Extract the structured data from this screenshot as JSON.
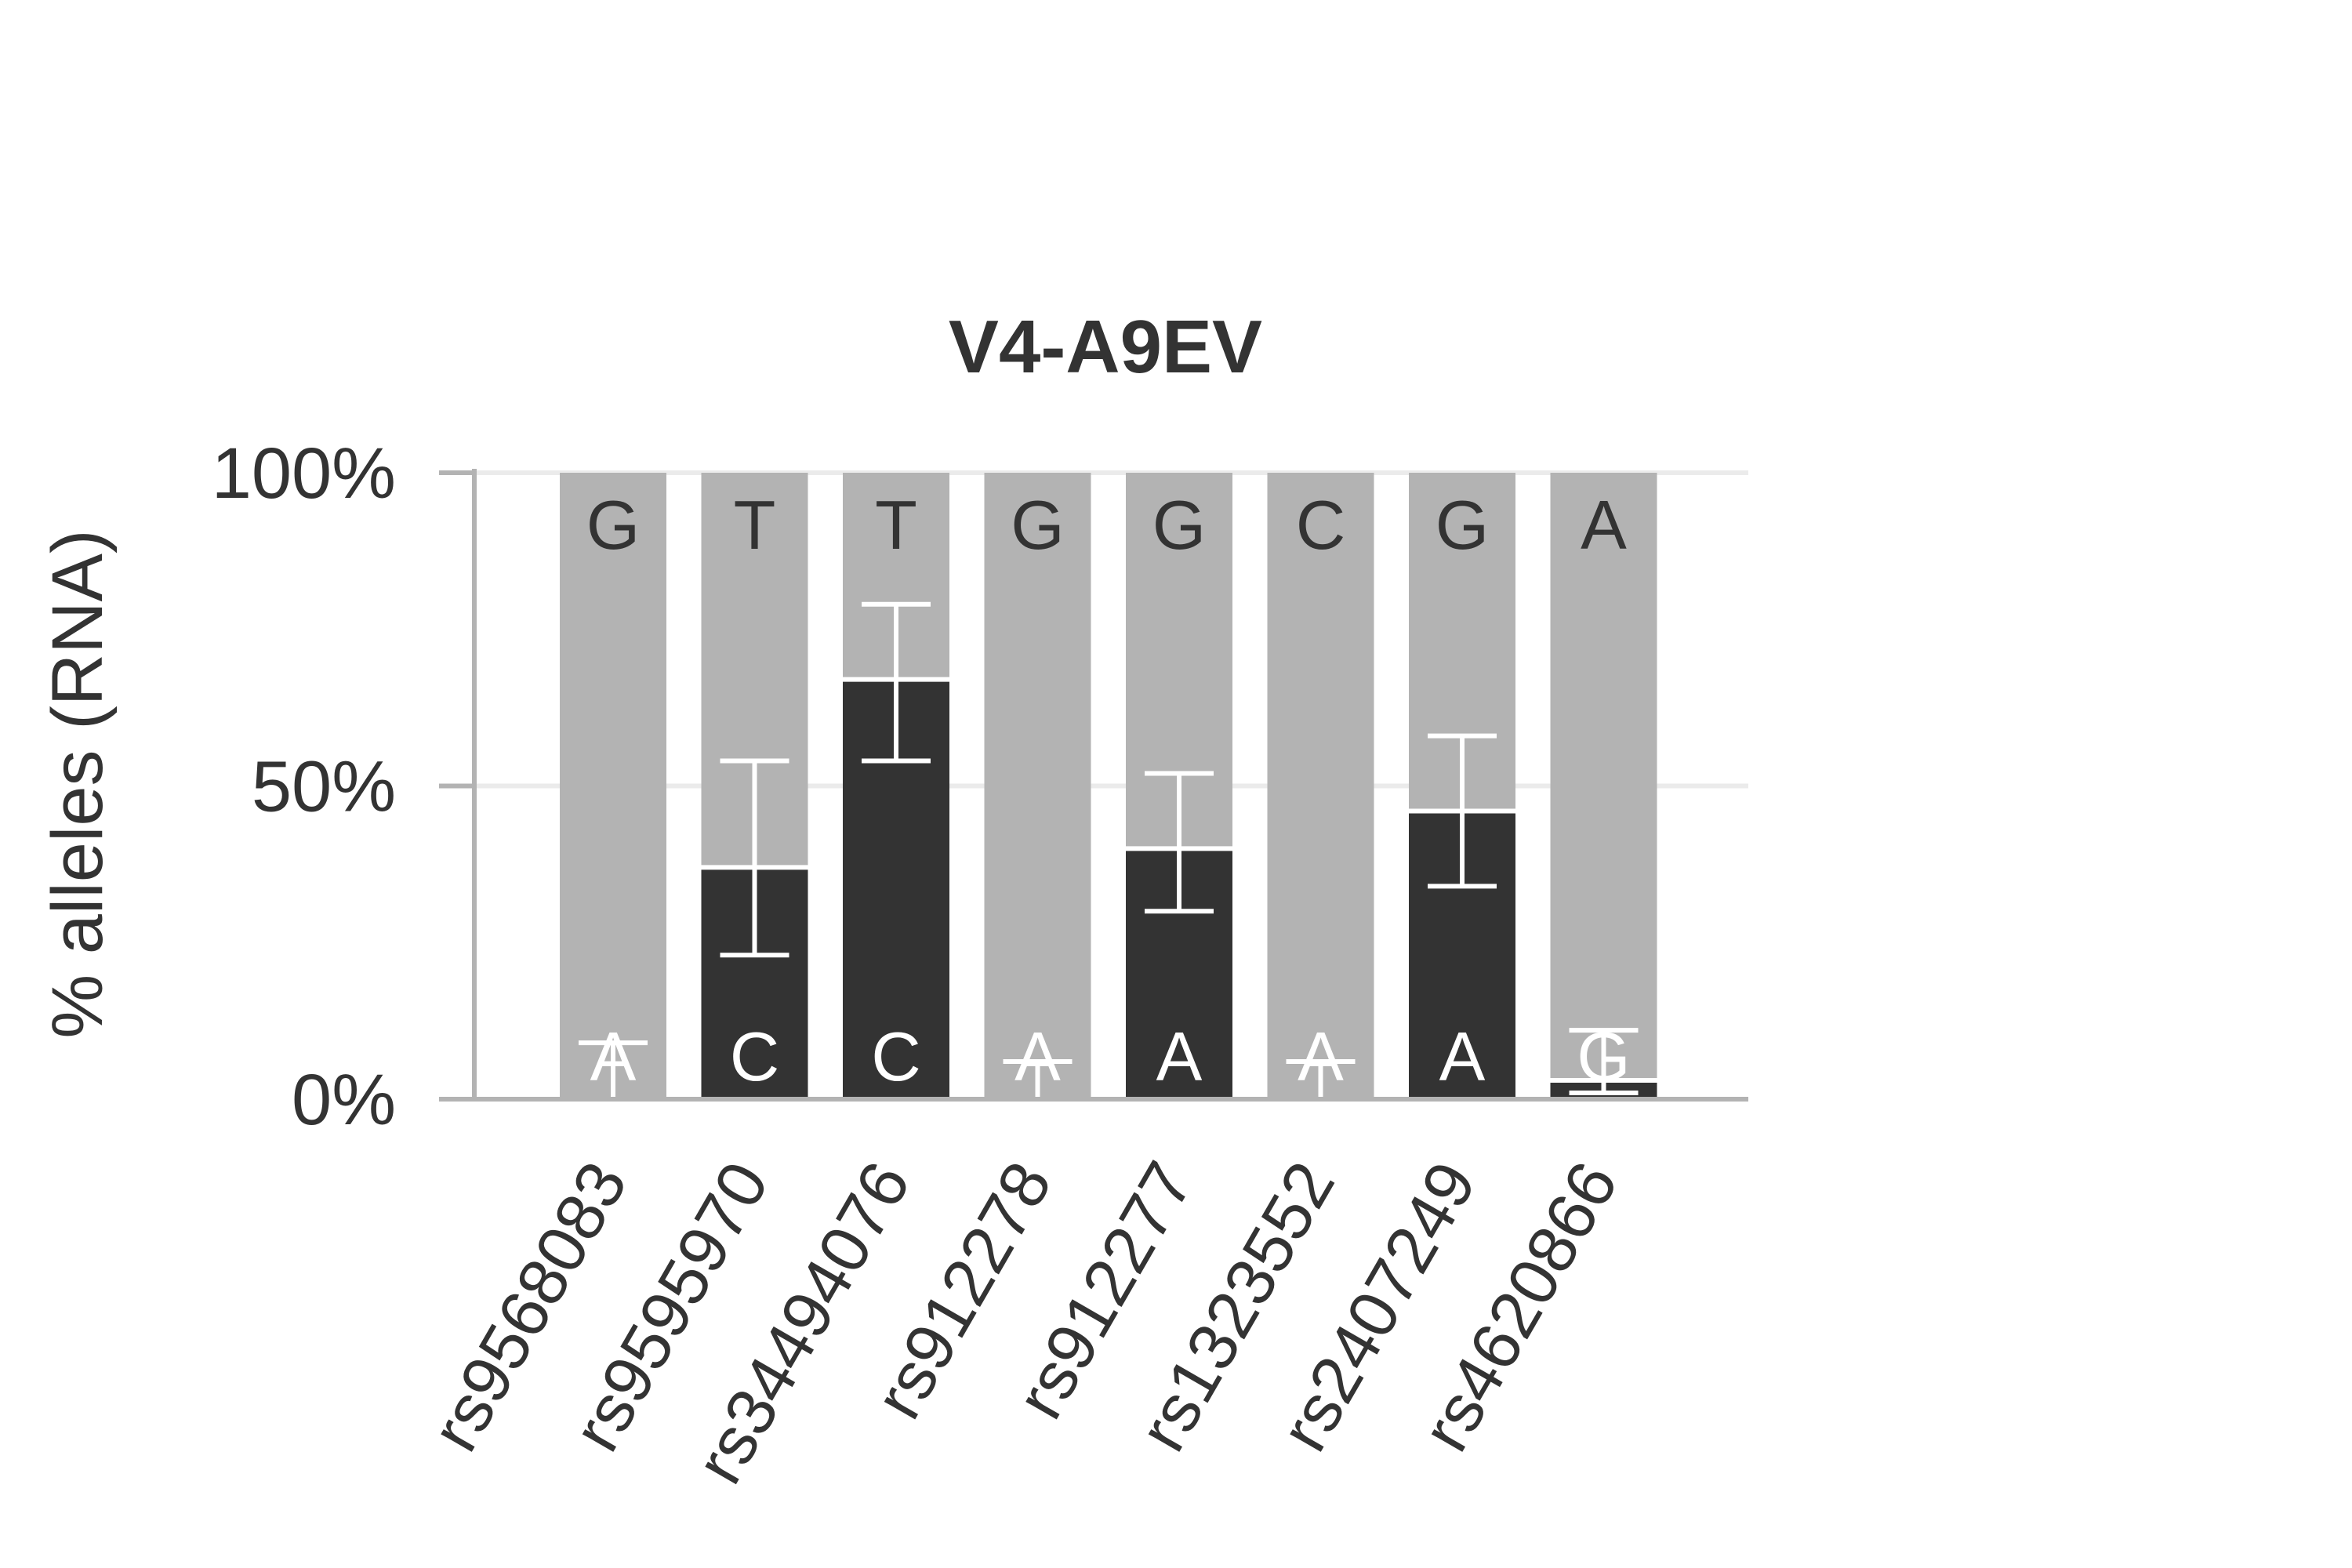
{
  "chart_data": {
    "type": "bar",
    "stacked": true,
    "title": "V4-A9EV",
    "ylabel": "% alleles (RNA)",
    "xlabel": "",
    "ylim": [
      0,
      100
    ],
    "yticks": [
      0,
      50,
      100
    ],
    "ytick_labels": [
      "0%",
      "50%",
      "100%"
    ],
    "grid": true,
    "categories": [
      "rs9568083",
      "rs9595970",
      "rs34494076",
      "rs912278",
      "rs912277",
      "rs1323552",
      "rs2407249",
      "rs4620866"
    ],
    "series": [
      {
        "color": "#333333",
        "alleles": [
          "A",
          "C",
          "C",
          "A",
          "A",
          "A",
          "A",
          "G"
        ],
        "values": [
          0,
          37,
          67,
          0,
          40,
          0,
          46,
          3
        ],
        "error_low": [
          0,
          23,
          54,
          0,
          30,
          0,
          34,
          1
        ],
        "error_high": [
          9,
          54,
          79,
          6,
          52,
          6,
          58,
          11
        ]
      },
      {
        "color": "#b3b3b3",
        "alleles": [
          "G",
          "T",
          "T",
          "G",
          "G",
          "C",
          "G",
          "A"
        ],
        "values": [
          100,
          63,
          33,
          100,
          60,
          100,
          54,
          97
        ]
      }
    ]
  }
}
